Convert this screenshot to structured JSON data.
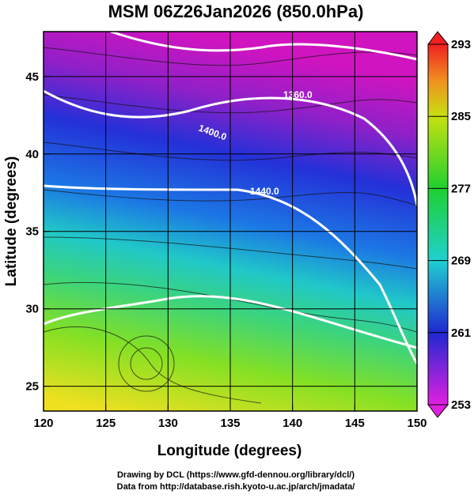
{
  "title": "MSM 06Z26Jan2026 (850.0hPa)",
  "x_axis": {
    "label": "Longitude (degrees)",
    "lim": [
      120,
      150
    ],
    "ticks": [
      120,
      125,
      130,
      135,
      140,
      145,
      150
    ]
  },
  "y_axis": {
    "label": "Latitude  (degrees)",
    "lim": [
      23.4,
      47.9
    ],
    "ticks": [
      25,
      30,
      35,
      40,
      45
    ]
  },
  "colorbar": {
    "lim": [
      253,
      293
    ],
    "ticks": [
      253,
      261,
      269,
      277,
      285,
      293
    ]
  },
  "contour_labels": [
    "1360.0",
    "1400.0",
    "1440.0"
  ],
  "credits": [
    "Drawing by DCL (https://www.gfd-dennou.org/library/dcl/)",
    "Data from http://database.rish.kyoto-u.ac.jp/arch/jmadata/"
  ]
}
